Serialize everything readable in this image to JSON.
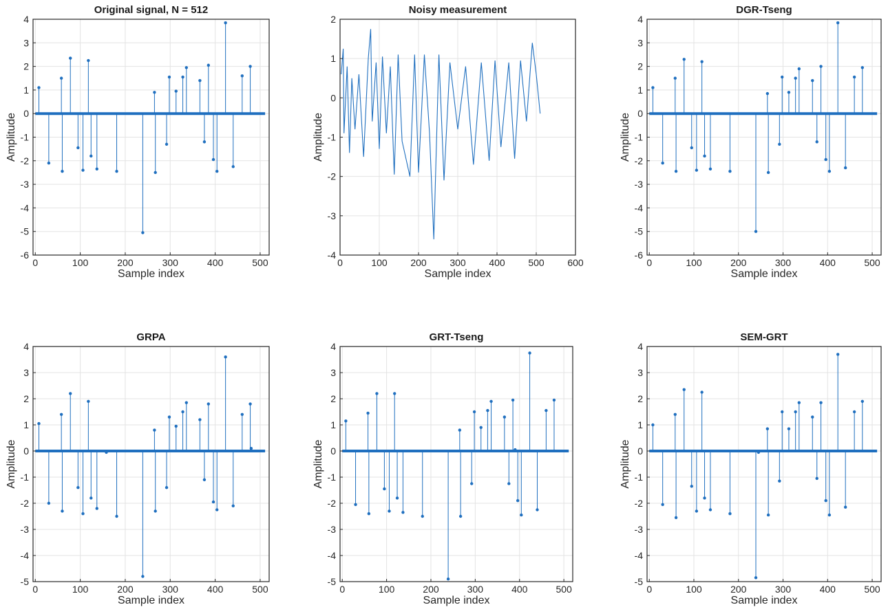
{
  "chart_data": [
    {
      "type": "stem",
      "title": "Original signal, N = 512",
      "xlabel": "Sample index",
      "ylabel": "Amplitude",
      "xlim": [
        -5,
        520
      ],
      "ylim": [
        -6,
        4
      ],
      "xticks": [
        0,
        100,
        200,
        300,
        400,
        500
      ],
      "yticks": [
        -6,
        -5,
        -4,
        -3,
        -2,
        -1,
        0,
        1,
        2,
        3,
        4
      ],
      "grid": true,
      "n": 512,
      "color": "#1f6fbf",
      "x": [
        8,
        30,
        58,
        60,
        78,
        95,
        106,
        118,
        124,
        137,
        181,
        239,
        265,
        267,
        292,
        298,
        313,
        328,
        336,
        366,
        376,
        385,
        396,
        404,
        423,
        440,
        460,
        478
      ],
      "y": [
        1.1,
        -2.1,
        1.5,
        -2.45,
        2.35,
        -1.45,
        -2.4,
        2.25,
        -1.8,
        -2.35,
        -2.45,
        -5.05,
        0.9,
        -2.5,
        -1.3,
        1.55,
        0.95,
        1.55,
        1.95,
        1.4,
        -1.2,
        2.05,
        -1.95,
        -2.45,
        3.85,
        -2.25,
        1.6,
        2.0
      ]
    },
    {
      "type": "line",
      "title": "Noisy measurement",
      "xlabel": "Sample index",
      "ylabel": "Amplitude",
      "xlim": [
        0,
        600
      ],
      "ylim": [
        -4,
        2
      ],
      "xticks": [
        0,
        100,
        200,
        300,
        400,
        500,
        600
      ],
      "yticks": [
        -4,
        -3,
        -2,
        -1,
        0,
        1,
        2
      ],
      "grid": true,
      "n": 512,
      "color": "#1f6fbf",
      "x": [
        3,
        8,
        10,
        18,
        24,
        30,
        38,
        48,
        60,
        72,
        78,
        82,
        92,
        100,
        108,
        118,
        128,
        138,
        148,
        158,
        178,
        190,
        200,
        215,
        228,
        239,
        252,
        265,
        280,
        300,
        320,
        340,
        360,
        380,
        395,
        410,
        430,
        445,
        460,
        475,
        490,
        500,
        510
      ],
      "y": [
        0.6,
        1.25,
        -0.9,
        0.8,
        -1.4,
        0.5,
        -0.8,
        0.6,
        -1.5,
        1.0,
        1.75,
        -0.6,
        0.9,
        -1.3,
        1.05,
        -0.9,
        0.8,
        -1.95,
        1.1,
        -1.1,
        -2.0,
        1.1,
        -1.9,
        1.1,
        -0.9,
        -3.6,
        1.1,
        -2.1,
        0.9,
        -0.8,
        0.8,
        -1.7,
        0.9,
        -1.6,
        0.95,
        -1.25,
        0.9,
        -1.55,
        0.95,
        -0.6,
        1.4,
        0.6,
        -0.4
      ]
    },
    {
      "type": "stem",
      "title": "DGR-Tseng",
      "xlabel": "Sample index",
      "ylabel": "Amplitude",
      "xlim": [
        -5,
        520
      ],
      "ylim": [
        -6,
        4
      ],
      "xticks": [
        0,
        100,
        200,
        300,
        400,
        500
      ],
      "yticks": [
        -6,
        -5,
        -4,
        -3,
        -2,
        -1,
        0,
        1,
        2,
        3,
        4
      ],
      "grid": true,
      "n": 512,
      "color": "#1f6fbf",
      "x": [
        8,
        30,
        58,
        60,
        78,
        95,
        106,
        118,
        124,
        137,
        181,
        239,
        265,
        267,
        292,
        298,
        313,
        328,
        336,
        366,
        376,
        385,
        396,
        404,
        423,
        440,
        460,
        478
      ],
      "y": [
        1.1,
        -2.1,
        1.5,
        -2.45,
        2.3,
        -1.45,
        -2.4,
        2.2,
        -1.8,
        -2.35,
        -2.45,
        -5.0,
        0.85,
        -2.5,
        -1.3,
        1.55,
        0.9,
        1.5,
        1.9,
        1.4,
        -1.2,
        2.0,
        -1.95,
        -2.45,
        3.85,
        -2.3,
        1.55,
        1.95
      ]
    },
    {
      "type": "stem",
      "title": "GRPA",
      "xlabel": "Sample index",
      "ylabel": "Amplitude",
      "xlim": [
        -5,
        520
      ],
      "ylim": [
        -5,
        4
      ],
      "xticks": [
        0,
        100,
        200,
        300,
        400,
        500
      ],
      "yticks": [
        -5,
        -4,
        -3,
        -2,
        -1,
        0,
        1,
        2,
        3,
        4
      ],
      "grid": true,
      "n": 512,
      "color": "#1f6fbf",
      "x": [
        8,
        30,
        58,
        60,
        78,
        95,
        106,
        118,
        124,
        137,
        158,
        181,
        239,
        265,
        267,
        292,
        298,
        313,
        328,
        336,
        366,
        376,
        385,
        396,
        404,
        423,
        440,
        460,
        478,
        480
      ],
      "y": [
        1.05,
        -2.0,
        1.4,
        -2.3,
        2.2,
        -1.4,
        -2.4,
        1.9,
        -1.8,
        -2.2,
        -0.05,
        -2.5,
        -4.8,
        0.8,
        -2.3,
        -1.4,
        1.3,
        0.95,
        1.5,
        1.85,
        1.2,
        -1.1,
        1.8,
        -1.95,
        -2.25,
        3.6,
        -2.1,
        1.4,
        1.8,
        0.1
      ]
    },
    {
      "type": "stem",
      "title": "GRT-Tseng",
      "xlabel": "Sample index",
      "ylabel": "Amplitude",
      "xlim": [
        -5,
        520
      ],
      "ylim": [
        -5,
        4
      ],
      "xticks": [
        0,
        100,
        200,
        300,
        400,
        500
      ],
      "yticks": [
        -5,
        -4,
        -3,
        -2,
        -1,
        0,
        1,
        2,
        3,
        4
      ],
      "grid": true,
      "n": 512,
      "color": "#1f6fbf",
      "x": [
        8,
        30,
        58,
        60,
        78,
        95,
        106,
        118,
        124,
        137,
        181,
        239,
        265,
        267,
        292,
        298,
        313,
        328,
        336,
        366,
        376,
        385,
        390,
        396,
        404,
        423,
        440,
        460,
        478
      ],
      "y": [
        1.15,
        -2.05,
        1.45,
        -2.4,
        2.2,
        -1.45,
        -2.3,
        2.2,
        -1.8,
        -2.35,
        -2.5,
        -4.9,
        0.8,
        -2.5,
        -1.25,
        1.5,
        0.9,
        1.55,
        1.9,
        1.3,
        -1.25,
        1.95,
        0.05,
        -1.9,
        -2.45,
        3.75,
        -2.25,
        1.55,
        1.95
      ]
    },
    {
      "type": "stem",
      "title": "SEM-GRT",
      "xlabel": "Sample index",
      "ylabel": "Amplitude",
      "xlim": [
        -5,
        520
      ],
      "ylim": [
        -5,
        4
      ],
      "xticks": [
        0,
        100,
        200,
        300,
        400,
        500
      ],
      "yticks": [
        -5,
        -4,
        -3,
        -2,
        -1,
        0,
        1,
        2,
        3,
        4
      ],
      "grid": true,
      "n": 512,
      "color": "#1f6fbf",
      "x": [
        8,
        30,
        58,
        60,
        78,
        95,
        106,
        118,
        124,
        137,
        181,
        239,
        245,
        265,
        267,
        292,
        298,
        313,
        328,
        336,
        366,
        376,
        385,
        396,
        404,
        423,
        440,
        460,
        478
      ],
      "y": [
        1.0,
        -2.05,
        1.4,
        -2.55,
        2.35,
        -1.35,
        -2.3,
        2.25,
        -1.8,
        -2.25,
        -2.4,
        -4.85,
        -0.05,
        0.85,
        -2.45,
        -1.15,
        1.5,
        0.85,
        1.5,
        1.85,
        1.3,
        -1.05,
        1.85,
        -1.9,
        -2.45,
        3.7,
        -2.15,
        1.5,
        1.9
      ]
    }
  ]
}
